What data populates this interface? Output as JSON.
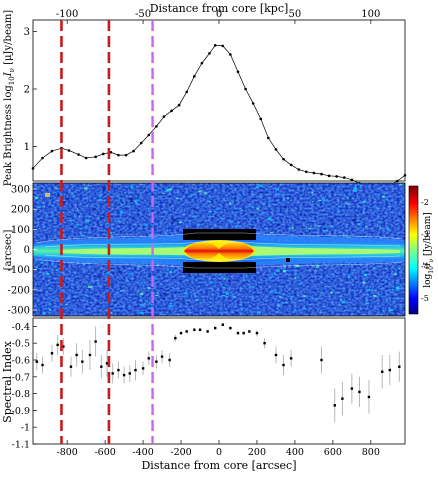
{
  "chart_data": [
    {
      "type": "line",
      "top_axis_label": "Distance from core [kpc]",
      "top_ticks": [
        -100,
        -50,
        0,
        50,
        100
      ],
      "kpc_per_arcsec": 0.125,
      "ylabel": "Peak Brightness log",
      "ylabel_sub": "10",
      "ylabel_var": "I",
      "ylabel_var_sub": "ν",
      "ylabel_unit": " [μJy/beam]",
      "yticks": [
        "1",
        "2",
        "3"
      ],
      "ylim": [
        0.4,
        3.2
      ],
      "xlim": [
        -980,
        980
      ],
      "x": [
        -980,
        -930,
        -880,
        -830,
        -790,
        -740,
        -700,
        -650,
        -610,
        -570,
        -530,
        -490,
        -450,
        -410,
        -370,
        -330,
        -290,
        -250,
        -210,
        -170,
        -130,
        -90,
        -50,
        -20,
        20,
        60,
        100,
        140,
        180,
        220,
        260,
        300,
        340,
        380,
        420,
        460,
        500,
        540,
        580,
        620,
        660,
        700,
        740,
        780,
        820,
        860,
        900,
        940,
        980
      ],
      "y": [
        0.62,
        0.8,
        0.92,
        0.97,
        0.93,
        0.86,
        0.8,
        0.82,
        0.87,
        0.9,
        0.85,
        0.85,
        0.92,
        1.06,
        1.2,
        1.35,
        1.52,
        1.62,
        1.72,
        1.95,
        2.22,
        2.45,
        2.62,
        2.76,
        2.75,
        2.6,
        2.3,
        2.0,
        1.75,
        1.48,
        1.15,
        0.95,
        0.78,
        0.68,
        0.6,
        0.56,
        0.54,
        0.52,
        0.49,
        0.48,
        0.46,
        0.42,
        0.36,
        0.31,
        0.28,
        0.29,
        0.33,
        0.4,
        0.5
      ]
    },
    {
      "type": "heatmap",
      "ylabel": "[arcsec]",
      "yticks": [
        300,
        200,
        100,
        0,
        -100,
        -200,
        -300
      ],
      "ylim": [
        -330,
        330
      ],
      "colorbar_label": "log",
      "colorbar_label_sub": "10",
      "colorbar_var": "I",
      "colorbar_var_sub": "ν",
      "colorbar_unit": " [Jy/beam]",
      "colorbar_ticks": [
        -2,
        -3,
        -4,
        -5
      ],
      "colorbar_range": [
        -5.5,
        -1.5
      ]
    },
    {
      "type": "scatter",
      "xlabel": "Distance from core [arcsec]",
      "ylabel": "Spectral Index",
      "xticks": [
        -800,
        -600,
        -400,
        -200,
        0,
        200,
        400,
        600,
        800
      ],
      "yticks": [
        "-0.4",
        "-0.5",
        "-0.6",
        "-0.7",
        "-0.8",
        "-0.9",
        "-1",
        "-1.1"
      ],
      "xlim": [
        -980,
        980
      ],
      "ylim": [
        -1.1,
        -0.35
      ],
      "points": [
        {
          "x": -960,
          "y": -0.61,
          "err": 0.05
        },
        {
          "x": -930,
          "y": -0.63,
          "err": 0.05
        },
        {
          "x": -880,
          "y": -0.56,
          "err": 0.05
        },
        {
          "x": -850,
          "y": -0.51,
          "err": 0.06
        },
        {
          "x": -820,
          "y": -0.52,
          "err": 0.05
        },
        {
          "x": -780,
          "y": -0.64,
          "err": 0.06
        },
        {
          "x": -750,
          "y": -0.57,
          "err": 0.07
        },
        {
          "x": -720,
          "y": -0.61,
          "err": 0.07
        },
        {
          "x": -680,
          "y": -0.57,
          "err": 0.09
        },
        {
          "x": -650,
          "y": -0.49,
          "err": 0.09
        },
        {
          "x": -620,
          "y": -0.64,
          "err": 0.07
        },
        {
          "x": -590,
          "y": -0.62,
          "err": 0.08
        },
        {
          "x": -560,
          "y": -0.68,
          "err": 0.06
        },
        {
          "x": -530,
          "y": -0.66,
          "err": 0.05
        },
        {
          "x": -500,
          "y": -0.69,
          "err": 0.05
        },
        {
          "x": -470,
          "y": -0.68,
          "err": 0.05
        },
        {
          "x": -440,
          "y": -0.66,
          "err": 0.06
        },
        {
          "x": -400,
          "y": -0.65,
          "err": 0.04
        },
        {
          "x": -370,
          "y": -0.59,
          "err": 0.04
        },
        {
          "x": -330,
          "y": -0.61,
          "err": 0.04
        },
        {
          "x": -300,
          "y": -0.58,
          "err": 0.04
        },
        {
          "x": -260,
          "y": -0.6,
          "err": 0.04
        },
        {
          "x": -230,
          "y": -0.47,
          "err": 0.02
        },
        {
          "x": -200,
          "y": -0.44,
          "err": 0.01
        },
        {
          "x": -170,
          "y": -0.43,
          "err": 0.01
        },
        {
          "x": -130,
          "y": -0.42,
          "err": 0.01
        },
        {
          "x": -100,
          "y": -0.42,
          "err": 0.01
        },
        {
          "x": -60,
          "y": -0.43,
          "err": 0.01
        },
        {
          "x": -20,
          "y": -0.41,
          "err": 0.01
        },
        {
          "x": 20,
          "y": -0.39,
          "err": 0.01
        },
        {
          "x": 60,
          "y": -0.41,
          "err": 0.01
        },
        {
          "x": 100,
          "y": -0.44,
          "err": 0.01
        },
        {
          "x": 130,
          "y": -0.44,
          "err": 0.01
        },
        {
          "x": 160,
          "y": -0.43,
          "err": 0.01
        },
        {
          "x": 200,
          "y": -0.44,
          "err": 0.02
        },
        {
          "x": 240,
          "y": -0.5,
          "err": 0.03
        },
        {
          "x": 300,
          "y": -0.57,
          "err": 0.05
        },
        {
          "x": 340,
          "y": -0.63,
          "err": 0.06
        },
        {
          "x": 380,
          "y": -0.59,
          "err": 0.05
        },
        {
          "x": 540,
          "y": -0.6,
          "err": 0.08
        },
        {
          "x": 610,
          "y": -0.87,
          "err": 0.1
        },
        {
          "x": 650,
          "y": -0.83,
          "err": 0.1
        },
        {
          "x": 700,
          "y": -0.77,
          "err": 0.09
        },
        {
          "x": 740,
          "y": -0.79,
          "err": 0.09
        },
        {
          "x": 790,
          "y": -0.82,
          "err": 0.1
        },
        {
          "x": 860,
          "y": -0.67,
          "err": 0.1
        },
        {
          "x": 900,
          "y": -0.66,
          "err": 0.09
        },
        {
          "x": 950,
          "y": -0.64,
          "err": 0.09
        }
      ]
    }
  ],
  "markers": {
    "red_x": [
      -830,
      -580
    ],
    "violet_x": [
      -350
    ],
    "red_color": "#cc1a1a",
    "violet_color": "#cc66ee"
  }
}
